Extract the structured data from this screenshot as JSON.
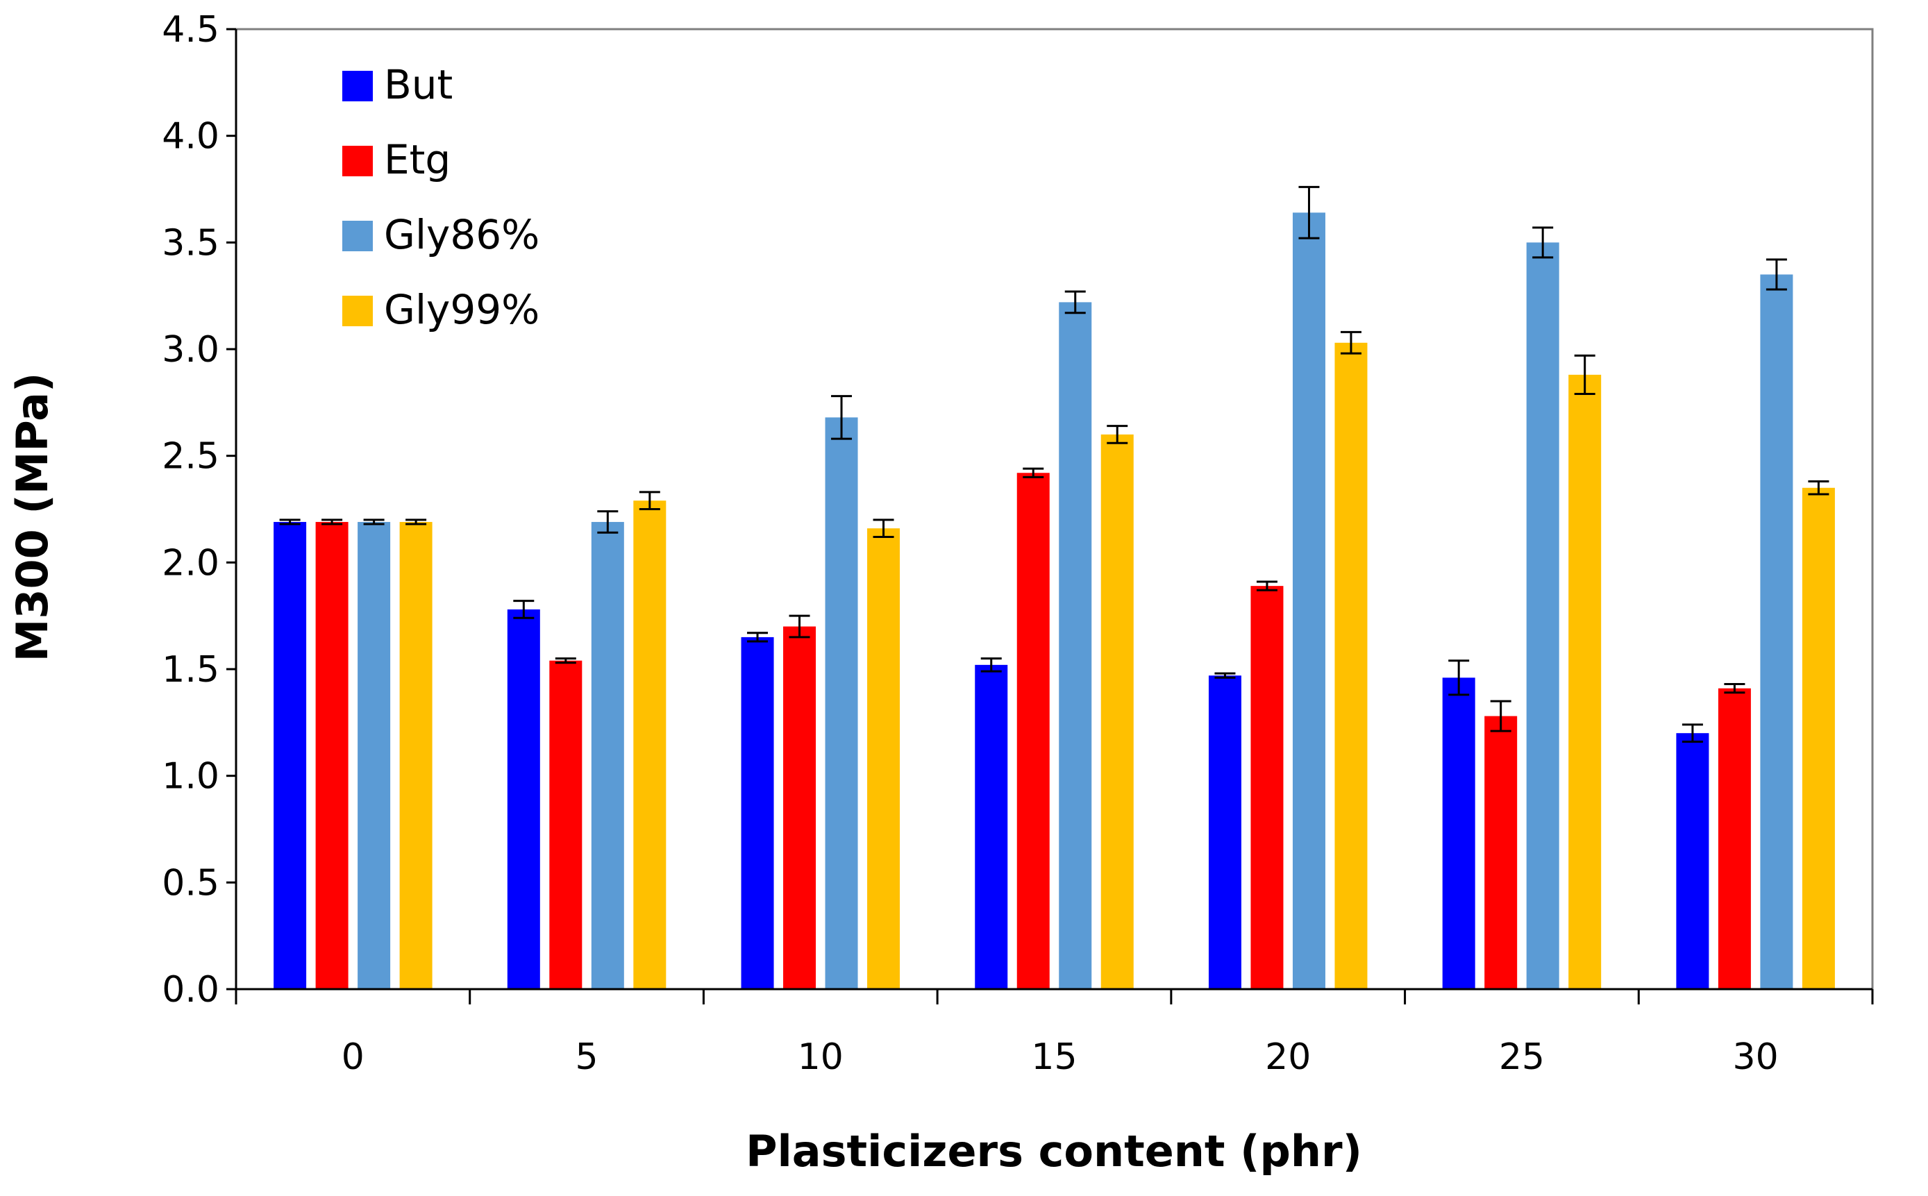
{
  "chart_data": {
    "type": "bar",
    "title": "",
    "xlabel": "Plasticizers content (phr)",
    "ylabel": "M300 (MPa)",
    "ylim": [
      0,
      4.5
    ],
    "yticks": [
      "0.0",
      "0.5",
      "1.0",
      "1.5",
      "2.0",
      "2.5",
      "3.0",
      "3.5",
      "4.0",
      "4.5"
    ],
    "categories": [
      "0",
      "5",
      "10",
      "15",
      "20",
      "25",
      "30"
    ],
    "legend_position": "top-left",
    "grid": false,
    "series": [
      {
        "name": "But",
        "color": "#0000ff",
        "values": [
          2.19,
          1.78,
          1.65,
          1.52,
          1.47,
          1.46,
          1.2
        ],
        "errors": [
          0.01,
          0.04,
          0.02,
          0.03,
          0.01,
          0.08,
          0.04
        ]
      },
      {
        "name": "Etg",
        "color": "#ff0000",
        "values": [
          2.19,
          1.54,
          1.7,
          2.42,
          1.89,
          1.28,
          1.41
        ],
        "errors": [
          0.01,
          0.01,
          0.05,
          0.02,
          0.02,
          0.07,
          0.02
        ]
      },
      {
        "name": "Gly86%",
        "color": "#5b9bd5",
        "values": [
          2.19,
          2.19,
          2.68,
          3.22,
          3.64,
          3.5,
          3.35
        ],
        "errors": [
          0.01,
          0.05,
          0.1,
          0.05,
          0.12,
          0.07,
          0.07
        ]
      },
      {
        "name": "Gly99%",
        "color": "#ffc000",
        "values": [
          2.19,
          2.29,
          2.16,
          2.6,
          3.03,
          2.88,
          2.35
        ],
        "errors": [
          0.01,
          0.04,
          0.04,
          0.04,
          0.05,
          0.09,
          0.03
        ]
      }
    ]
  }
}
